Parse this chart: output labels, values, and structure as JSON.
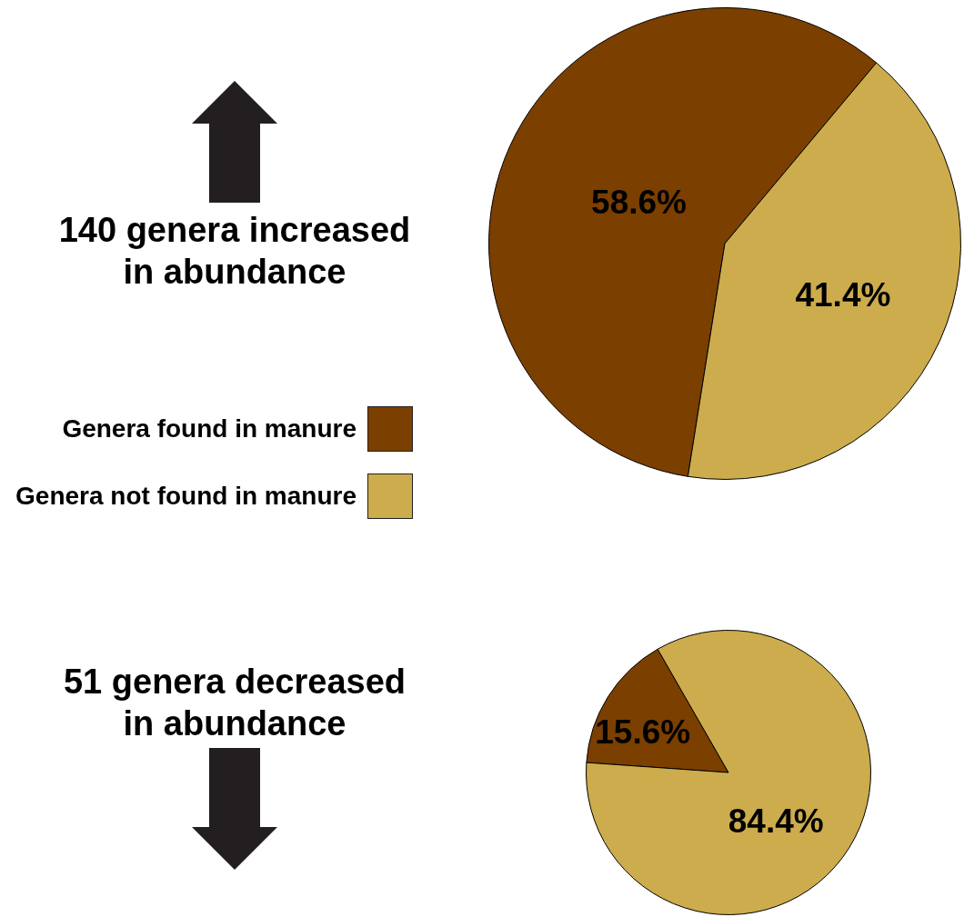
{
  "chart_data": [
    {
      "type": "pie",
      "title": "140 genera increased in abundance",
      "categories": [
        "Genera found in manure",
        "Genera not found in manure"
      ],
      "values": [
        58.6,
        41.4
      ],
      "colors": [
        "#7b3f00",
        "#ccac4c"
      ],
      "value_labels": [
        "58.6%",
        "41.4%"
      ],
      "legend": "left"
    },
    {
      "type": "pie",
      "title": "51 genera decreased in abundance",
      "categories": [
        null,
        null
      ],
      "values": [
        15.6,
        84.4
      ],
      "colors": [
        "#7b3f00",
        "#ccac4c"
      ],
      "value_labels": [
        "15.6%",
        "84.4%"
      ]
    }
  ]
}
